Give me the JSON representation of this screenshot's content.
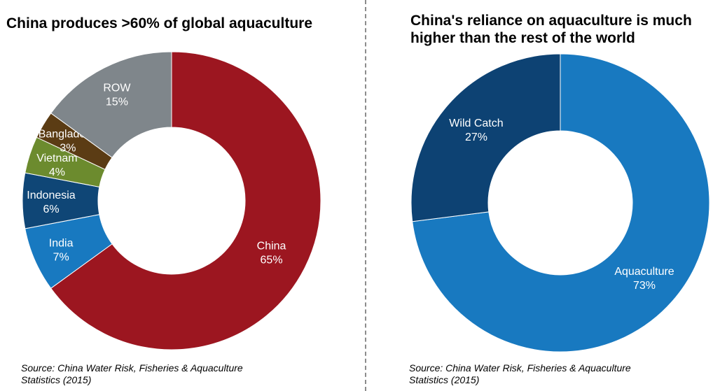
{
  "colors": {
    "china": "#9c1620",
    "india": "#1879c0",
    "indonesia": "#0f4676",
    "vietnam": "#6c8b2e",
    "bangladesh": "#5b3c14",
    "row": "#7f868b",
    "aquaculture": "#1879c0",
    "wild_catch": "#0d4273"
  },
  "chart_data": [
    {
      "type": "pie",
      "title": "China produces >60%  of global aquaculture",
      "source": "Source: China Water Risk, Fisheries & Aquaculture\nStatistics (2015)",
      "slices": [
        {
          "name": "China",
          "value": 65,
          "pct_label": "65%",
          "color": "#9c1620"
        },
        {
          "name": "India",
          "value": 7,
          "pct_label": "7%",
          "color": "#1879c0"
        },
        {
          "name": "Indonesia",
          "value": 6,
          "pct_label": "6%",
          "color": "#0f4676"
        },
        {
          "name": "Vietnam",
          "value": 4,
          "pct_label": "4%",
          "color": "#6c8b2e"
        },
        {
          "name": "Bangladesh",
          "value": 3,
          "pct_label": "3%",
          "color": "#5b3c14"
        },
        {
          "name": "ROW",
          "value": 15,
          "pct_label": "15%",
          "color": "#7f868b"
        }
      ]
    },
    {
      "type": "pie",
      "title": "China's reliance on aquaculture is much\nhigher than the rest of the world",
      "source": "Source: China Water Risk, Fisheries & Aquaculture\nStatistics (2015)",
      "slices": [
        {
          "name": "Aquaculture",
          "value": 73,
          "pct_label": "73%",
          "color": "#1879c0"
        },
        {
          "name": "Wild Catch",
          "value": 27,
          "pct_label": "27%",
          "color": "#0d4273"
        }
      ]
    }
  ]
}
